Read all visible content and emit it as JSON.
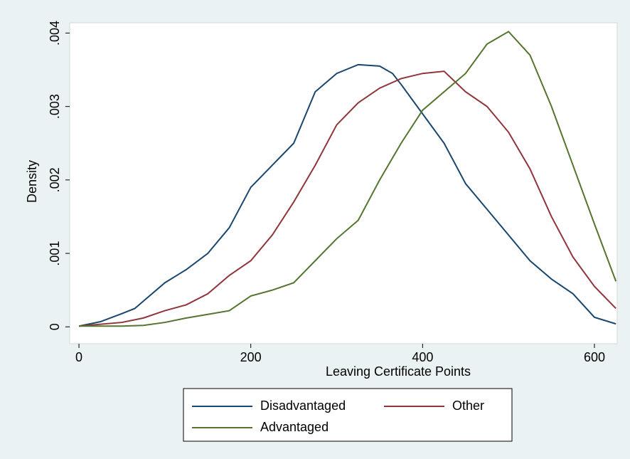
{
  "chart_data": {
    "type": "line",
    "xlabel": "Leaving Certificate Points",
    "ylabel": "Density",
    "xlim": [
      -10.8,
      626.5
    ],
    "ylim": [
      -0.00023,
      0.00414
    ],
    "xticks": [
      0,
      200,
      400,
      600
    ],
    "yticks": [
      0,
      {
        "value": 0.001,
        "label": ".001"
      },
      {
        "value": 0.002,
        "label": ".002"
      },
      {
        "value": 0.003,
        "label": ".003"
      },
      {
        "value": 0.004,
        "label": ".004"
      }
    ],
    "grid": false,
    "legend": "bottom",
    "series": [
      {
        "name": "Disadvantaged",
        "color": "#1a476f",
        "x": [
          0,
          25,
          50,
          65,
          75,
          100,
          125,
          150,
          175,
          200,
          225,
          250,
          275,
          300,
          325,
          350,
          365,
          375,
          400,
          425,
          450,
          475,
          500,
          525,
          550,
          575,
          600,
          625
        ],
        "values": [
          1e-05,
          7e-05,
          0.00018,
          0.00025,
          0.00035,
          0.0006,
          0.00078,
          0.001,
          0.00135,
          0.0019,
          0.0022,
          0.0025,
          0.0032,
          0.00345,
          0.00357,
          0.00355,
          0.00345,
          0.0033,
          0.0029,
          0.0025,
          0.00195,
          0.0016,
          0.00125,
          0.0009,
          0.00065,
          0.00045,
          0.00013,
          4e-05
        ]
      },
      {
        "name": "Other",
        "color": "#90353b",
        "x": [
          0,
          50,
          75,
          100,
          125,
          150,
          175,
          200,
          225,
          250,
          275,
          300,
          325,
          350,
          375,
          400,
          425,
          450,
          475,
          500,
          525,
          550,
          575,
          600,
          625
        ],
        "values": [
          1e-05,
          6e-05,
          0.00012,
          0.00022,
          0.0003,
          0.00045,
          0.0007,
          0.0009,
          0.00125,
          0.0017,
          0.0022,
          0.00275,
          0.00305,
          0.00325,
          0.00338,
          0.00345,
          0.00348,
          0.0032,
          0.003,
          0.00265,
          0.00215,
          0.0015,
          0.00095,
          0.00055,
          0.00025
        ]
      },
      {
        "name": "Advantaged",
        "color": "#55752f",
        "x": [
          0,
          50,
          75,
          100,
          125,
          150,
          175,
          200,
          225,
          250,
          275,
          300,
          325,
          350,
          375,
          400,
          425,
          450,
          475,
          500,
          525,
          550,
          575,
          600,
          625
        ],
        "values": [
          1e-05,
          1e-05,
          2e-05,
          6e-05,
          0.00012,
          0.00017,
          0.00022,
          0.00042,
          0.0005,
          0.0006,
          0.0009,
          0.0012,
          0.00145,
          0.002,
          0.0025,
          0.00295,
          0.0032,
          0.00345,
          0.00385,
          0.00402,
          0.0037,
          0.003,
          0.0022,
          0.0014,
          0.00062
        ]
      }
    ]
  }
}
